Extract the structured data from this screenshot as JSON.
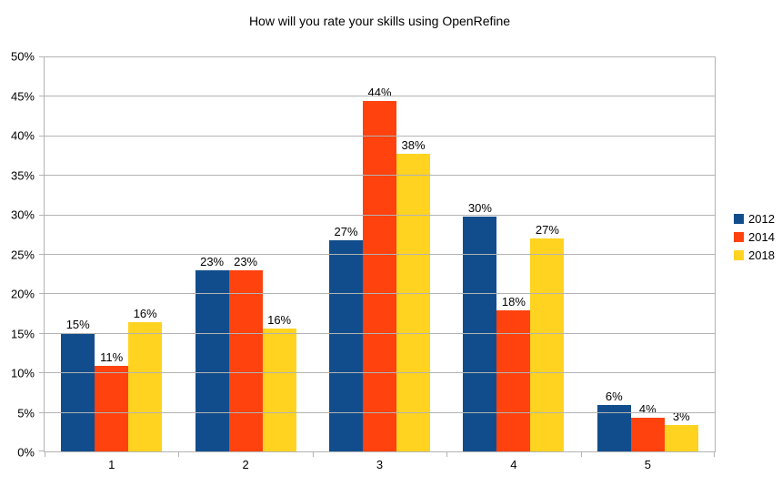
{
  "chart_data": {
    "type": "bar",
    "title": "How will you rate your skills using OpenRefine",
    "categories": [
      "1",
      "2",
      "3",
      "4",
      "5"
    ],
    "series": [
      {
        "name": "2012",
        "color": "#114d8c",
        "values": [
          15.0,
          22.9,
          26.7,
          29.7,
          5.9
        ],
        "labels": [
          "15%",
          "23%",
          "27%",
          "30%",
          "6%"
        ]
      },
      {
        "name": "2014",
        "color": "#ff420e",
        "values": [
          10.8,
          22.9,
          44.3,
          17.9,
          4.3
        ],
        "labels": [
          "11%",
          "23%",
          "44%",
          "18%",
          "4%"
        ]
      },
      {
        "name": "2018",
        "color": "#ffd320",
        "values": [
          16.4,
          15.6,
          37.7,
          27.0,
          3.3
        ],
        "labels": [
          "16%",
          "16%",
          "38%",
          "27%",
          "3%"
        ]
      }
    ],
    "xlabel": "",
    "ylabel": "",
    "ylim": [
      0,
      50
    ],
    "ytick_step": 5,
    "ytick_labels": [
      "0%",
      "5%",
      "10%",
      "15%",
      "20%",
      "25%",
      "30%",
      "35%",
      "40%",
      "45%",
      "50%"
    ],
    "grid": true,
    "legend_position": "right",
    "colors": {
      "grid": "#b3b3b3",
      "axis": "#b3b3b3",
      "text": "#000000",
      "background": "#ffffff"
    }
  }
}
